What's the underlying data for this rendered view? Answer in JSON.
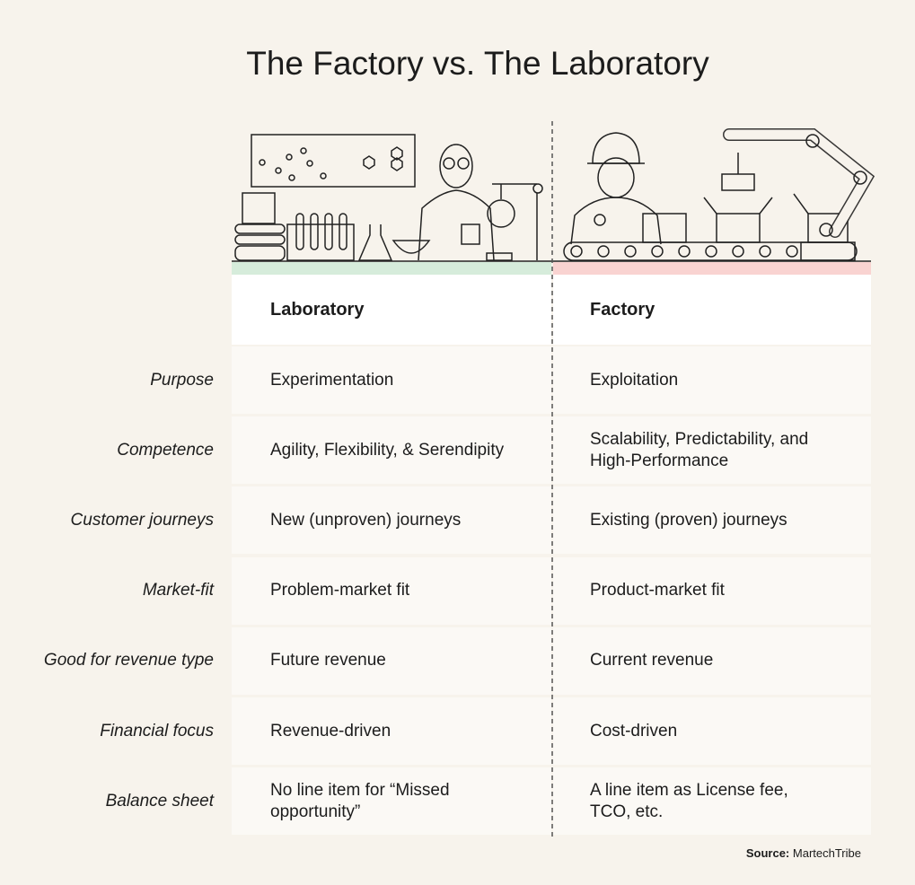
{
  "title": "The Factory vs. The Laboratory",
  "table": {
    "columns": [
      "Laboratory",
      "Factory"
    ],
    "rows": [
      {
        "label": "Purpose",
        "laboratory": "Experimentation",
        "factory": "Exploitation"
      },
      {
        "label": "Competence",
        "laboratory": "Agility, Flexibility, & Serendipity",
        "factory": "Scalability, Predictability, and High-Performance"
      },
      {
        "label": "Customer journeys",
        "laboratory": "New (unproven) journeys",
        "factory": "Existing (proven) journeys"
      },
      {
        "label": "Market-fit",
        "laboratory": "Problem-market fit",
        "factory": "Product-market fit"
      },
      {
        "label": "Good for revenue type",
        "laboratory": "Future revenue",
        "factory": "Current revenue"
      },
      {
        "label": "Financial focus",
        "laboratory": "Revenue-driven",
        "factory": "Cost-driven"
      },
      {
        "label": "Balance sheet",
        "laboratory": "No line item for “Missed opportunity”",
        "factory": "A line item as License fee, TCO, etc."
      }
    ]
  },
  "source": {
    "label": "Source:",
    "name": "MartechTribe"
  }
}
